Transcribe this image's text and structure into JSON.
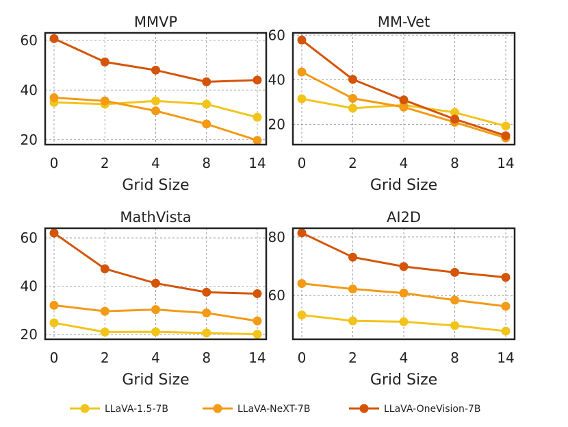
{
  "chart_data": [
    {
      "type": "line",
      "title": "MMVP",
      "xlabel": "Grid Size",
      "ylabel": "",
      "categories": [
        "0",
        "2",
        "4",
        "8",
        "14"
      ],
      "ylim": [
        18,
        63
      ],
      "yticks": [
        20,
        40,
        60
      ],
      "series": [
        {
          "name": "LLaVA-1.5-7B",
          "values": [
            35.0,
            34.3,
            35.6,
            34.3,
            29.0
          ]
        },
        {
          "name": "LLaVA-NeXT-7B",
          "values": [
            36.9,
            35.6,
            31.6,
            26.3,
            19.7
          ]
        },
        {
          "name": "LLaVA-OneVision-7B",
          "values": [
            60.7,
            51.3,
            48.0,
            43.3,
            44.0
          ]
        }
      ]
    },
    {
      "type": "line",
      "title": "MM-Vet",
      "xlabel": "Grid Size",
      "ylabel": "",
      "categories": [
        "0",
        "2",
        "4",
        "8",
        "14"
      ],
      "ylim": [
        11,
        61
      ],
      "yticks": [
        20,
        40,
        60
      ],
      "series": [
        {
          "name": "LLaVA-1.5-7B",
          "values": [
            31.5,
            27.3,
            28.7,
            25.4,
            19.3
          ]
        },
        {
          "name": "LLaVA-NeXT-7B",
          "values": [
            43.5,
            31.7,
            27.8,
            21.0,
            14.0
          ]
        },
        {
          "name": "LLaVA-OneVision-7B",
          "values": [
            57.8,
            40.2,
            31.0,
            22.4,
            15.0
          ]
        }
      ]
    },
    {
      "type": "line",
      "title": "MathVista",
      "xlabel": "Grid Size",
      "ylabel": "",
      "categories": [
        "0",
        "2",
        "4",
        "8",
        "14"
      ],
      "ylim": [
        18,
        64
      ],
      "yticks": [
        20,
        40,
        60
      ],
      "series": [
        {
          "name": "LLaVA-1.5-7B",
          "values": [
            24.8,
            21.0,
            21.1,
            20.6,
            20.1
          ]
        },
        {
          "name": "LLaVA-NeXT-7B",
          "values": [
            32.1,
            29.6,
            30.3,
            28.9,
            25.6
          ]
        },
        {
          "name": "LLaVA-OneVision-7B",
          "values": [
            62.0,
            47.2,
            41.2,
            37.5,
            36.9
          ]
        }
      ]
    },
    {
      "type": "line",
      "title": "AI2D",
      "xlabel": "Grid Size",
      "ylabel": "",
      "categories": [
        "0",
        "2",
        "4",
        "8",
        "14"
      ],
      "ylim": [
        45,
        83
      ],
      "yticks": [
        60,
        80
      ],
      "series": [
        {
          "name": "LLaVA-1.5-7B",
          "values": [
            53.3,
            51.3,
            51.0,
            49.7,
            47.8
          ]
        },
        {
          "name": "LLaVA-NeXT-7B",
          "values": [
            64.1,
            62.2,
            60.8,
            58.4,
            56.3
          ]
        },
        {
          "name": "LLaVA-OneVision-7B",
          "values": [
            81.4,
            73.1,
            69.9,
            67.9,
            66.2
          ]
        }
      ]
    }
  ],
  "legend": [
    {
      "name": "LLaVA-1.5-7B",
      "color": "#f2c41b"
    },
    {
      "name": "LLaVA-NeXT-7B",
      "color": "#f39a16"
    },
    {
      "name": "LLaVA-OneVision-7B",
      "color": "#d45508"
    }
  ],
  "colors": {
    "LLaVA-1.5-7B": "#f2c41b",
    "LLaVA-NeXT-7B": "#f39a16",
    "LLaVA-OneVision-7B": "#d45508"
  }
}
